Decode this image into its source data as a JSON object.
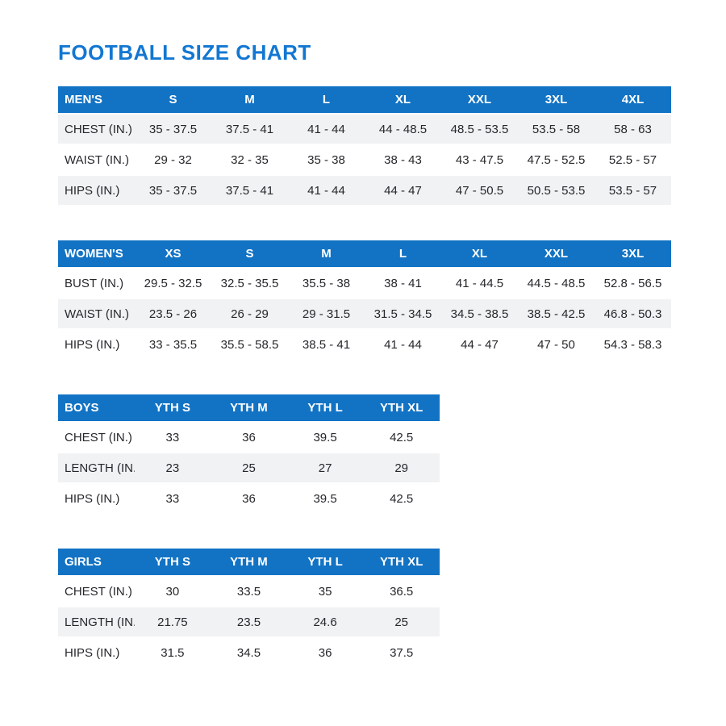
{
  "page": {
    "title": "FOOTBALL SIZE CHART"
  },
  "palette": {
    "title_blue": "#1277d2",
    "header_blue": "#1273c4",
    "header_text": "#ffffff",
    "shaded_row": "#f1f2f4",
    "body_text": "#26272b"
  },
  "tables": [
    {
      "name": "mens",
      "label": "MEN'S",
      "width": "full",
      "zebra": "odd",
      "columns": [
        "S",
        "M",
        "L",
        "XL",
        "XXL",
        "3XL",
        "4XL"
      ],
      "rows": [
        {
          "label": "CHEST (IN.)",
          "values": [
            "35 - 37.5",
            "37.5 - 41",
            "41 - 44",
            "44 - 48.5",
            "48.5 - 53.5",
            "53.5 - 58",
            "58 - 63"
          ]
        },
        {
          "label": "WAIST (IN.)",
          "values": [
            "29 - 32",
            "32 - 35",
            "35 - 38",
            "38 - 43",
            "43 - 47.5",
            "47.5 - 52.5",
            "52.5 - 57"
          ]
        },
        {
          "label": "HIPS (IN.)",
          "values": [
            "35 - 37.5",
            "37.5 - 41",
            "41 - 44",
            "44 - 47",
            "47 - 50.5",
            "50.5 - 53.5",
            "53.5 - 57"
          ]
        }
      ]
    },
    {
      "name": "womens",
      "label": "WOMEN'S",
      "width": "full",
      "zebra": "even",
      "columns": [
        "XS",
        "S",
        "M",
        "L",
        "XL",
        "XXL",
        "3XL"
      ],
      "rows": [
        {
          "label": "BUST (IN.)",
          "values": [
            "29.5 - 32.5",
            "32.5 - 35.5",
            "35.5 - 38",
            "38 - 41",
            "41 - 44.5",
            "44.5 - 48.5",
            "52.8 - 56.5"
          ]
        },
        {
          "label": "WAIST (IN.)",
          "values": [
            "23.5 - 26",
            "26 - 29",
            "29 - 31.5",
            "31.5 - 34.5",
            "34.5 - 38.5",
            "38.5 - 42.5",
            "46.8 - 50.3"
          ]
        },
        {
          "label": "HIPS (IN.)",
          "values": [
            "33 - 35.5",
            "35.5 - 58.5",
            "38.5 - 41",
            "41 - 44",
            "44 - 47",
            "47 - 50",
            "54.3 - 58.3"
          ]
        }
      ]
    },
    {
      "name": "boys",
      "label": "BOYS",
      "width": "youth",
      "zebra": "even",
      "columns": [
        "YTH S",
        "YTH M",
        "YTH L",
        "YTH XL"
      ],
      "rows": [
        {
          "label": "CHEST (IN.)",
          "values": [
            "33",
            "36",
            "39.5",
            "42.5"
          ]
        },
        {
          "label": "LENGTH (IN.)",
          "values": [
            "23",
            "25",
            "27",
            "29"
          ]
        },
        {
          "label": "HIPS (IN.)",
          "values": [
            "33",
            "36",
            "39.5",
            "42.5"
          ]
        }
      ]
    },
    {
      "name": "girls",
      "label": "GIRLS",
      "width": "youth",
      "zebra": "even",
      "columns": [
        "YTH S",
        "YTH M",
        "YTH L",
        "YTH XL"
      ],
      "rows": [
        {
          "label": "CHEST (IN.)",
          "values": [
            "30",
            "33.5",
            "35",
            "36.5"
          ]
        },
        {
          "label": "LENGTH (IN.)",
          "values": [
            "21.75",
            "23.5",
            "24.6",
            "25"
          ]
        },
        {
          "label": "HIPS (IN.)",
          "values": [
            "31.5",
            "34.5",
            "36",
            "37.5"
          ]
        }
      ]
    }
  ]
}
